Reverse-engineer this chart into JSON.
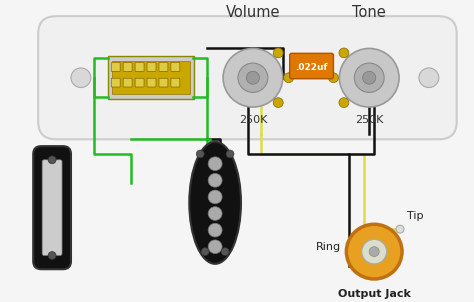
{
  "bg_color": "#f5f5f5",
  "plate_color": "#f0f0f0",
  "plate_edge": "#cccccc",
  "pot_color": "#c8c8c8",
  "pot_inner": "#aaaaaa",
  "pot_lug": "#c8a800",
  "cap_color": "#e07800",
  "cap_edge": "#b05000",
  "jack_color": "#e8a020",
  "jack_edge": "#c07010",
  "switch_color": "#c8a800",
  "switch_body": "#d4b800",
  "wire_black": "#111111",
  "wire_green": "#22bb22",
  "wire_yellow": "#dddd44",
  "vol_label": "Volume",
  "tone_label": "Tone",
  "vol_250k": "250K",
  "tone_250k": "250K",
  "cap_label": ".022uf",
  "tip_label": "Tip",
  "ring_label": "Ring",
  "jack_label": "Output Jack"
}
